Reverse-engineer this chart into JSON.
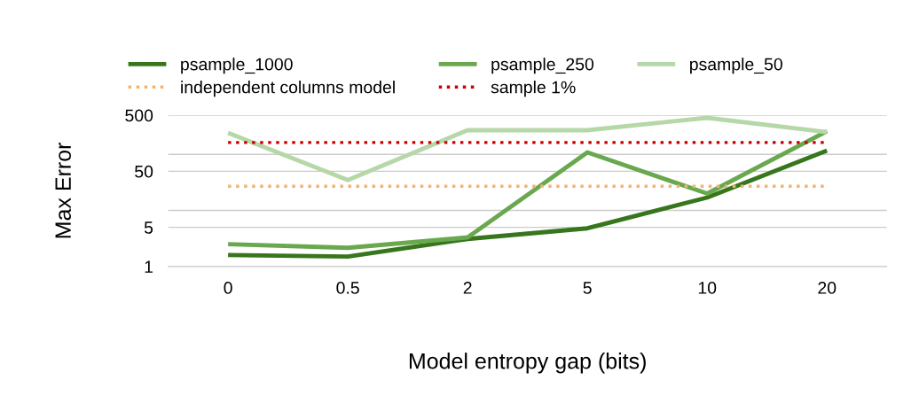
{
  "chart_data": {
    "type": "line",
    "xlabel": "Model entropy gap (bits)",
    "ylabel": "Max Error",
    "categories": [
      "0",
      "0.5",
      "2",
      "5",
      "10",
      "20"
    ],
    "series": [
      {
        "name": "psample_1000",
        "color": "#38761d",
        "values": [
          1.6,
          1.5,
          3.1,
          4.8,
          17,
          117
        ]
      },
      {
        "name": "psample_250",
        "color": "#6aa84f",
        "values": [
          2.5,
          2.15,
          3.3,
          109,
          20,
          260
        ]
      },
      {
        "name": "psample_50",
        "color": "#b6d7a8",
        "values": [
          243,
          35,
          270,
          270,
          450,
          250
        ]
      },
      {
        "name": "independent columns model",
        "color": "#f6b26b",
        "line_style": "dotted",
        "values": [
          27,
          27,
          27,
          27,
          27,
          27
        ]
      },
      {
        "name": "sample 1%",
        "color": "#cc0000",
        "line_style": "dotted",
        "values": [
          163,
          163,
          163,
          163,
          163,
          163
        ]
      }
    ],
    "log": "y",
    "ylim": [
      1,
      500
    ],
    "yticks": [
      1,
      5,
      {
        "value": 10,
        "label": null
      },
      50,
      {
        "value": 100,
        "label": null
      },
      500
    ],
    "grid": "y",
    "legend": "top",
    "marker": "none",
    "line_style": "solid"
  }
}
